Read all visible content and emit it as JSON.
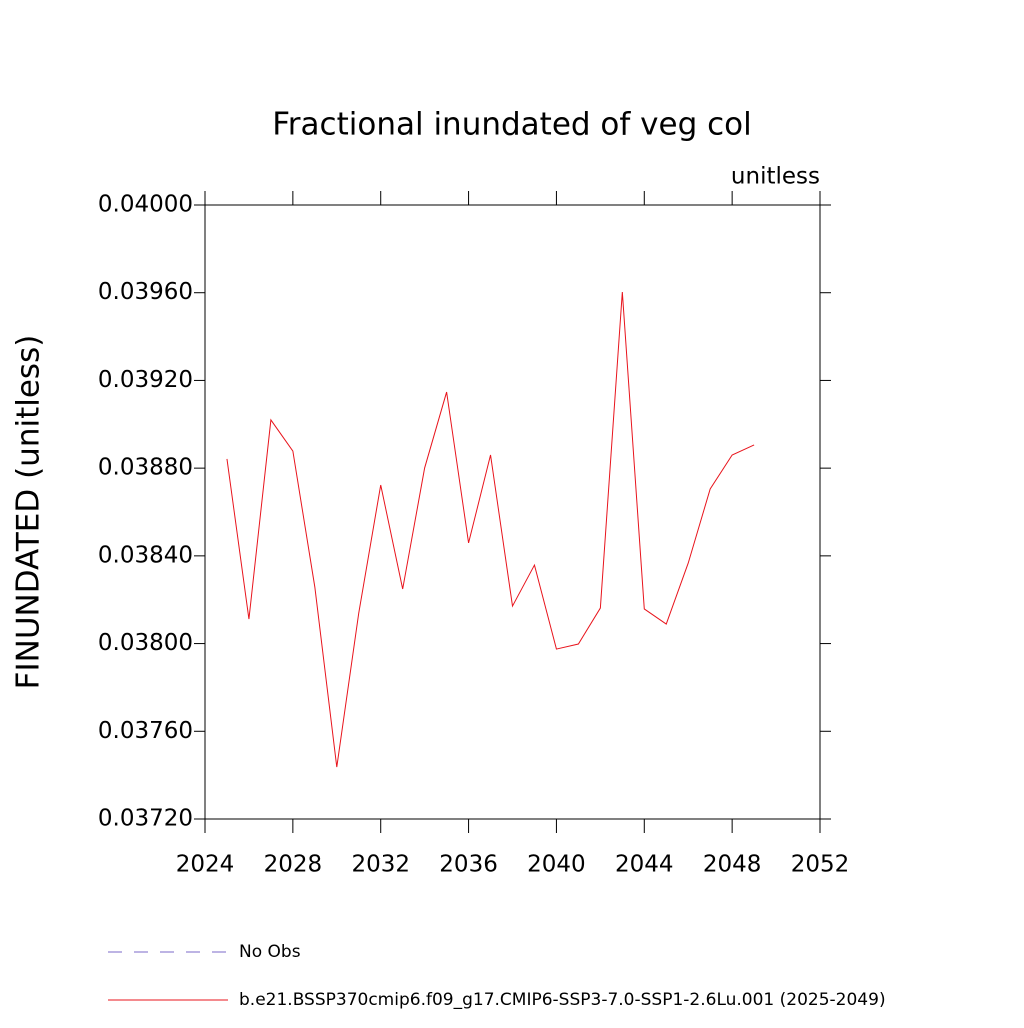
{
  "chart_data": {
    "type": "line",
    "title": "Fractional inundated of veg col",
    "units_label": "unitless",
    "y_label": "FINUNDATED  (unitless)",
    "x": [
      2025,
      2026,
      2027,
      2028,
      2029,
      2030,
      2031,
      2032,
      2033,
      2034,
      2035,
      2036,
      2037,
      2038,
      2039,
      2040,
      2041,
      2042,
      2043,
      2044,
      2045,
      2046,
      2047,
      2048,
      2049
    ],
    "series": [
      {
        "name": "No Obs",
        "color": "#7b68c8",
        "dashed": true,
        "values": [
          null,
          null,
          null,
          null,
          null,
          null,
          null,
          null,
          null,
          null,
          null,
          null,
          null,
          null,
          null,
          null,
          null,
          null,
          null,
          null,
          null,
          null,
          null,
          null,
          null
        ]
      },
      {
        "name": "b.e21.BSSP370cmip6.f09_g17.CMIP6-SSP3-7.0-SSP1-2.6Lu.001 (2025-2049)",
        "color": "#e8141c",
        "dashed": false,
        "values": [
          0.038842,
          0.038112,
          0.03902,
          0.038878,
          0.038258,
          0.037437,
          0.038139,
          0.038723,
          0.038249,
          0.038801,
          0.039147,
          0.038459,
          0.03886,
          0.038171,
          0.038358,
          0.037975,
          0.037998,
          0.038162,
          0.039603,
          0.038158,
          0.038089,
          0.038367,
          0.038705,
          0.03886,
          0.038906
        ]
      }
    ],
    "xlim": [
      2024,
      2052
    ],
    "xticks": [
      2024,
      2028,
      2032,
      2036,
      2040,
      2044,
      2048,
      2052
    ],
    "ylim": [
      0.0372,
      0.04
    ],
    "yticks": [
      {
        "value": 0.0372,
        "label": "0.03720"
      },
      {
        "value": 0.0376,
        "label": "0.03760"
      },
      {
        "value": 0.038,
        "label": "0.03800"
      },
      {
        "value": 0.0384,
        "label": "0.03840"
      },
      {
        "value": 0.0388,
        "label": "0.03880"
      },
      {
        "value": 0.0392,
        "label": "0.03920"
      },
      {
        "value": 0.0396,
        "label": "0.03960"
      },
      {
        "value": 0.04,
        "label": "0.04000"
      }
    ],
    "grid": false
  }
}
